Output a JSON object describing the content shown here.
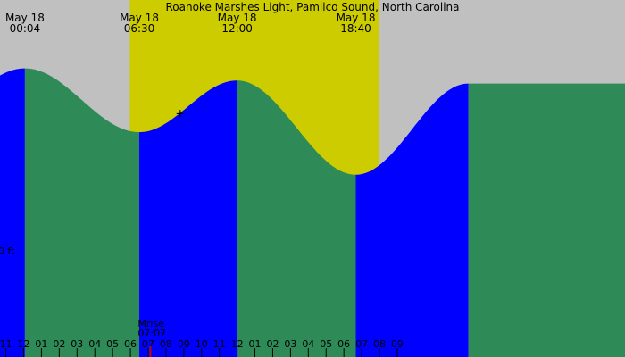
{
  "chart_data": {
    "type": "area",
    "title": "Roanoke Marshes Light, Pamlico Sound, North Carolina",
    "x_unit": "hour of day",
    "xlim": [
      -1.33,
      33.8
    ],
    "y_label": "0 ft",
    "y_zero": 0,
    "ylim": [
      -0.7,
      1.65
    ],
    "daylight": {
      "start": 5.97,
      "end": 20.0
    },
    "tide_events": [
      {
        "date": "May 18",
        "time": "00:04",
        "hour": 0.07,
        "height": 1.2,
        "type": "high",
        "labeled": true
      },
      {
        "date": "May 18",
        "time": "06:30",
        "hour": 6.5,
        "height": 0.78,
        "type": "low",
        "labeled": true
      },
      {
        "date": "May 18",
        "time": "12:00",
        "hour": 12.0,
        "height": 1.12,
        "type": "high",
        "labeled": true
      },
      {
        "date": "May 18",
        "time": "18:40",
        "hour": 18.67,
        "height": 0.5,
        "type": "low",
        "labeled": true
      },
      {
        "date": "",
        "time": "",
        "hour": 25.0,
        "height": 1.1,
        "type": "high",
        "labeled": false
      }
    ],
    "current_marker": {
      "hour": 8.8,
      "symbol": "+"
    },
    "moonrise": {
      "label": "Mrise",
      "time": "07:07",
      "hour": 7.12
    },
    "x_ticks": [
      {
        "label": "11",
        "hour": -1
      },
      {
        "label": "12",
        "hour": 0
      },
      {
        "label": "01",
        "hour": 1
      },
      {
        "label": "02",
        "hour": 2
      },
      {
        "label": "03",
        "hour": 3
      },
      {
        "label": "04",
        "hour": 4
      },
      {
        "label": "05",
        "hour": 5
      },
      {
        "label": "06",
        "hour": 6
      },
      {
        "label": "07",
        "hour": 7
      },
      {
        "label": "08",
        "hour": 8
      },
      {
        "label": "09",
        "hour": 9
      },
      {
        "label": "10",
        "hour": 10
      },
      {
        "label": "11",
        "hour": 11
      },
      {
        "label": "12",
        "hour": 12
      },
      {
        "label": "01",
        "hour": 13
      },
      {
        "label": "02",
        "hour": 14
      },
      {
        "label": "03",
        "hour": 15
      },
      {
        "label": "04",
        "hour": 16
      },
      {
        "label": "05",
        "hour": 17
      },
      {
        "label": "06",
        "hour": 18
      },
      {
        "label": "07",
        "hour": 19
      },
      {
        "label": "08",
        "hour": 20
      },
      {
        "label": "09",
        "hour": 21
      }
    ],
    "colors": {
      "night": "#c0c0c0",
      "daylight": "#cccc00",
      "rising": "#0000ff",
      "falling": "#2e8b57",
      "tick": "#000000",
      "moon_tick": "#cc0000"
    }
  }
}
